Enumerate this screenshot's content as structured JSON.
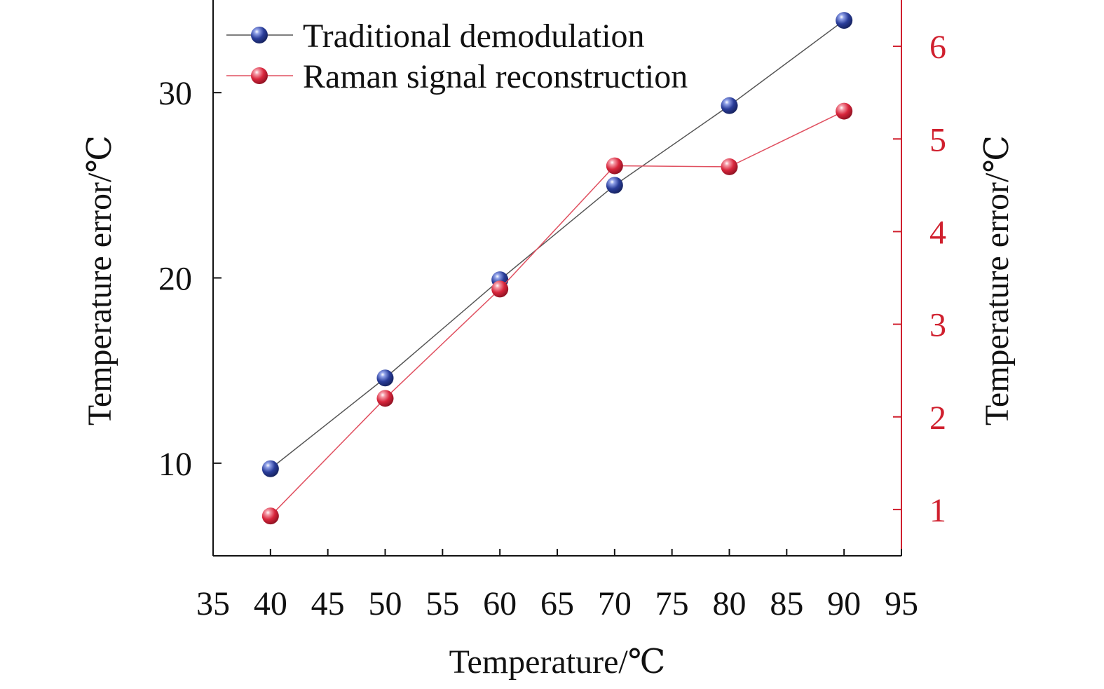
{
  "colors": {
    "axis": "#111111",
    "right_axis": "#d0202e",
    "traditional": "#2a3d9a",
    "raman": "#d8263c",
    "traditional_line": "#555555",
    "raman_line": "#e05060"
  },
  "chart_data": {
    "type": "scatter",
    "title": "",
    "xlabel": "Temperature/℃",
    "ylabel_left": "Temperature error/℃",
    "ylabel_right": "Temperature error/℃",
    "xlim": [
      35,
      95
    ],
    "ylim_left": [
      5,
      35
    ],
    "ylim_right": [
      0.5,
      6.5
    ],
    "x_ticks": [
      35,
      40,
      45,
      50,
      55,
      60,
      65,
      70,
      75,
      80,
      85,
      90,
      95
    ],
    "y_left_ticks": [
      10,
      20,
      30
    ],
    "y_right_ticks": [
      1,
      2,
      3,
      4,
      5,
      6
    ],
    "grid": false,
    "legend_position": "top-left",
    "series": [
      {
        "name": "Traditional demodulation",
        "axis": "left",
        "color_key": "traditional",
        "x": [
          40,
          50,
          60,
          70,
          80,
          90
        ],
        "y": [
          9.7,
          14.6,
          19.9,
          25.0,
          29.3,
          33.9
        ]
      },
      {
        "name": "Raman signal reconstruction",
        "axis": "right",
        "color_key": "raman",
        "x": [
          40,
          50,
          60,
          70,
          80,
          90
        ],
        "y": [
          0.93,
          2.2,
          3.38,
          4.71,
          4.7,
          5.3
        ]
      }
    ]
  }
}
